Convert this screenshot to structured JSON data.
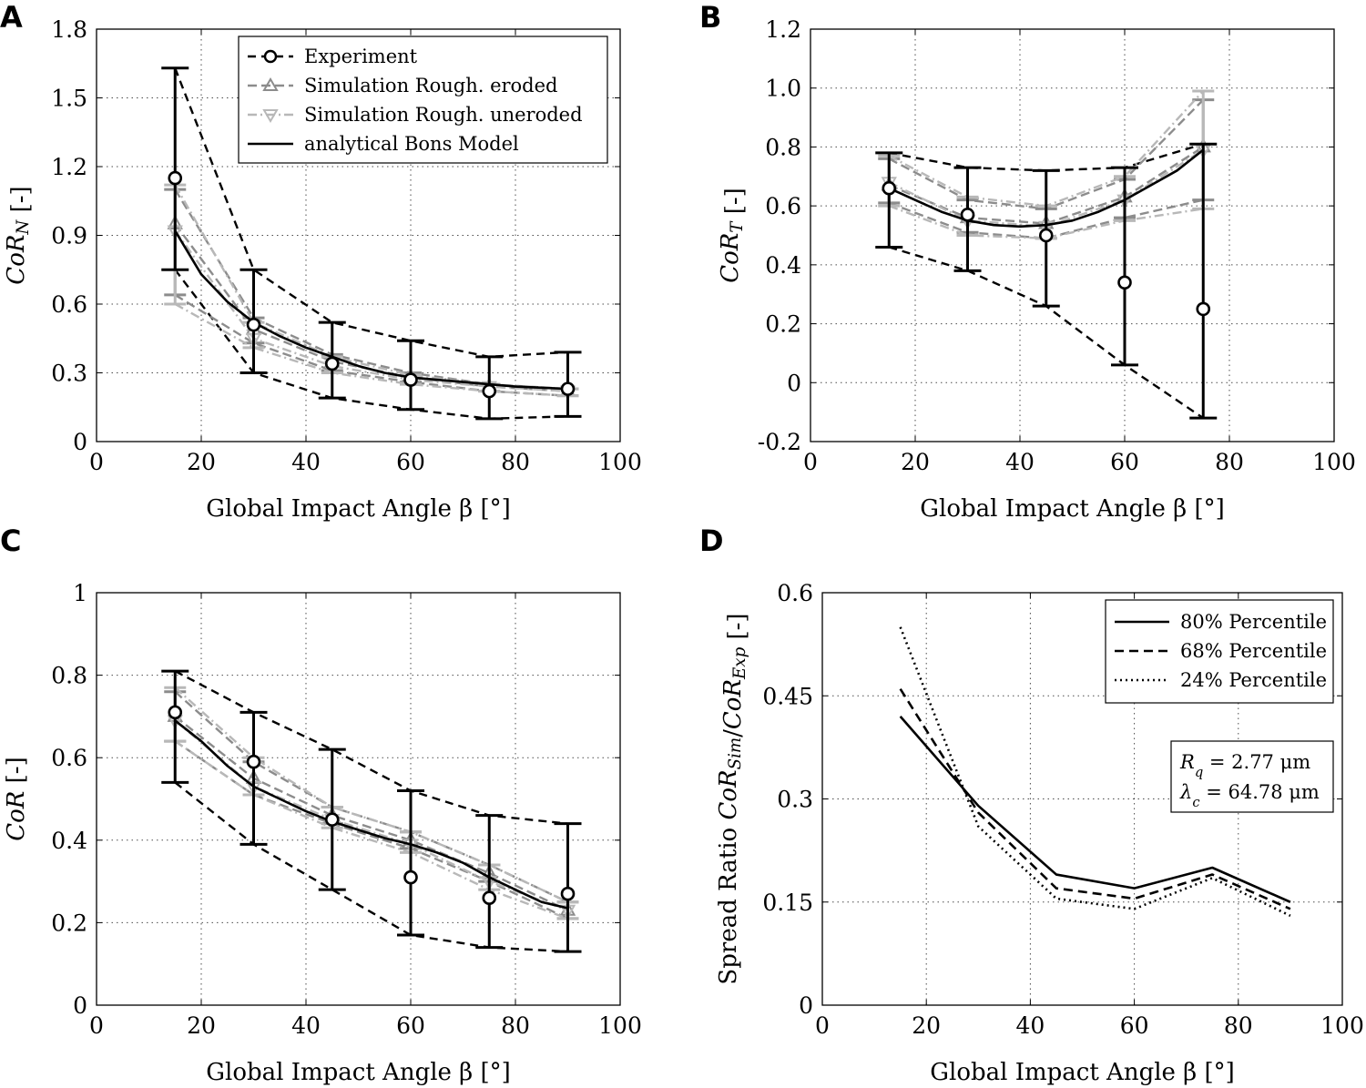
{
  "colors": {
    "experiment": "#000000",
    "sim_eroded": "#8c8c8c",
    "sim_uneroded": "#b8b8b8",
    "bons": "#000000"
  },
  "chart_data": [
    {
      "panel": "A",
      "type": "line",
      "xlabel": "Global Impact Angle β [°]",
      "ylabel": "CoR_N [-]",
      "xlim": [
        0,
        100
      ],
      "ylim": [
        0,
        1.8
      ],
      "xticks": [
        "0",
        "20",
        "40",
        "60",
        "80",
        "100"
      ],
      "xtick_values": [
        0,
        20,
        40,
        60,
        80,
        100
      ],
      "yticks": [
        "0",
        "0.3",
        "0.6",
        "0.9",
        "1.2",
        "1.5",
        "1.8"
      ],
      "ytick_values": [
        0,
        0.3,
        0.6,
        0.9,
        1.2,
        1.5,
        1.8
      ],
      "grid": true,
      "legend_position": "top-right",
      "legend": [
        "Experiment",
        "Simulation Rough. eroded",
        "Simulation Rough. uneroded",
        "analytical Bons Model"
      ],
      "experiment": {
        "x": [
          15,
          30,
          45,
          60,
          75,
          90
        ],
        "mean": [
          1.15,
          0.51,
          0.34,
          0.27,
          0.22,
          0.23
        ],
        "upper": [
          1.63,
          0.75,
          0.52,
          0.44,
          0.37,
          0.39
        ],
        "lower": [
          0.75,
          0.3,
          0.19,
          0.14,
          0.1,
          0.11
        ]
      },
      "sim_eroded": {
        "x": [
          15,
          30,
          45,
          60,
          75,
          90
        ],
        "mean": [
          0.95,
          0.49,
          0.35,
          0.28,
          0.24,
          0.22
        ],
        "upper": [
          1.1,
          0.54,
          0.38,
          0.3,
          0.25,
          0.23
        ],
        "lower": [
          0.64,
          0.43,
          0.31,
          0.26,
          0.22,
          0.2
        ]
      },
      "sim_uneroded": {
        "x": [
          15,
          30,
          45,
          60,
          75,
          90
        ],
        "mean": [
          0.92,
          0.45,
          0.33,
          0.27,
          0.24,
          0.22
        ],
        "upper": [
          1.12,
          0.52,
          0.37,
          0.29,
          0.25,
          0.23
        ],
        "lower": [
          0.6,
          0.41,
          0.3,
          0.25,
          0.22,
          0.2
        ]
      },
      "bons": {
        "x": [
          15,
          20,
          25,
          30,
          35,
          40,
          45,
          50,
          55,
          60,
          65,
          70,
          75,
          80,
          85,
          90
        ],
        "y": [
          0.92,
          0.73,
          0.61,
          0.52,
          0.46,
          0.41,
          0.37,
          0.33,
          0.3,
          0.28,
          0.27,
          0.26,
          0.25,
          0.24,
          0.235,
          0.23
        ]
      }
    },
    {
      "panel": "B",
      "type": "line",
      "xlabel": "Global Impact Angle β [°]",
      "ylabel": "CoR_T [-]",
      "xlim": [
        0,
        100
      ],
      "ylim": [
        -0.2,
        1.2
      ],
      "xticks": [
        "0",
        "20",
        "40",
        "60",
        "80",
        "100"
      ],
      "xtick_values": [
        0,
        20,
        40,
        60,
        80,
        100
      ],
      "yticks": [
        "-0.2",
        "0",
        "0.2",
        "0.4",
        "0.6",
        "0.8",
        "1.0",
        "1.2"
      ],
      "ytick_values": [
        -0.2,
        0,
        0.2,
        0.4,
        0.6,
        0.8,
        1.0,
        1.2
      ],
      "grid": true,
      "experiment": {
        "x": [
          15,
          30,
          45,
          60,
          75
        ],
        "mean": [
          0.66,
          0.57,
          0.5,
          0.34,
          0.25
        ],
        "upper": [
          0.78,
          0.73,
          0.72,
          0.73,
          0.81
        ],
        "lower": [
          0.46,
          0.38,
          0.26,
          0.06,
          -0.12
        ]
      },
      "sim_eroded": {
        "x": [
          15,
          30,
          45,
          60,
          75
        ],
        "mean": [
          0.67,
          0.56,
          0.54,
          0.63,
          0.8
        ],
        "upper": [
          0.76,
          0.62,
          0.59,
          0.69,
          0.96
        ],
        "lower": [
          0.61,
          0.51,
          0.49,
          0.56,
          0.62
        ]
      },
      "sim_uneroded": {
        "x": [
          15,
          30,
          45,
          60,
          75
        ],
        "mean": [
          0.68,
          0.55,
          0.53,
          0.62,
          0.79
        ],
        "upper": [
          0.77,
          0.63,
          0.6,
          0.7,
          0.99
        ],
        "lower": [
          0.6,
          0.5,
          0.49,
          0.55,
          0.59
        ]
      },
      "bons": {
        "x": [
          15,
          20,
          25,
          30,
          35,
          40,
          45,
          50,
          55,
          60,
          65,
          70,
          75
        ],
        "y": [
          0.66,
          0.62,
          0.58,
          0.55,
          0.535,
          0.53,
          0.535,
          0.55,
          0.58,
          0.62,
          0.67,
          0.72,
          0.79
        ]
      }
    },
    {
      "panel": "C",
      "type": "line",
      "xlabel": "Global Impact Angle β [°]",
      "ylabel": "CoR [-]",
      "xlim": [
        0,
        100
      ],
      "ylim": [
        0,
        1
      ],
      "xticks": [
        "0",
        "20",
        "40",
        "60",
        "80",
        "100"
      ],
      "xtick_values": [
        0,
        20,
        40,
        60,
        80,
        100
      ],
      "yticks": [
        "0",
        "0.2",
        "0.4",
        "0.6",
        "0.8",
        "1"
      ],
      "ytick_values": [
        0,
        0.2,
        0.4,
        0.6,
        0.8,
        1
      ],
      "grid": true,
      "experiment": {
        "x": [
          15,
          30,
          45,
          60,
          75,
          90
        ],
        "mean": [
          0.71,
          0.59,
          0.45,
          0.31,
          0.26,
          0.27
        ],
        "upper": [
          0.81,
          0.71,
          0.62,
          0.52,
          0.46,
          0.44
        ],
        "lower": [
          0.54,
          0.39,
          0.28,
          0.17,
          0.14,
          0.13
        ]
      },
      "sim_eroded": {
        "x": [
          15,
          30,
          45,
          60,
          75,
          90
        ],
        "mean": [
          0.7,
          0.55,
          0.46,
          0.4,
          0.32,
          0.23
        ],
        "upper": [
          0.76,
          0.59,
          0.48,
          0.42,
          0.34,
          0.25
        ],
        "lower": [
          0.64,
          0.51,
          0.44,
          0.38,
          0.3,
          0.21
        ]
      },
      "sim_uneroded": {
        "x": [
          15,
          30,
          45,
          60,
          75,
          90
        ],
        "mean": [
          0.69,
          0.53,
          0.45,
          0.39,
          0.3,
          0.23
        ],
        "upper": [
          0.77,
          0.6,
          0.48,
          0.42,
          0.34,
          0.25
        ],
        "lower": [
          0.64,
          0.51,
          0.43,
          0.37,
          0.28,
          0.21
        ]
      },
      "bons": {
        "x": [
          15,
          20,
          25,
          30,
          35,
          40,
          45,
          50,
          55,
          60,
          65,
          70,
          75,
          80,
          85,
          90
        ],
        "y": [
          0.69,
          0.64,
          0.58,
          0.53,
          0.5,
          0.47,
          0.445,
          0.425,
          0.405,
          0.39,
          0.37,
          0.345,
          0.31,
          0.28,
          0.25,
          0.235
        ]
      }
    },
    {
      "panel": "D",
      "type": "line",
      "xlabel": "Global Impact Angle β [°]",
      "ylabel": "Spread Ratio CoR_Sim/CoR_Exp [-]",
      "xlim": [
        0,
        100
      ],
      "ylim": [
        0,
        0.6
      ],
      "xticks": [
        "0",
        "20",
        "40",
        "60",
        "80",
        "100"
      ],
      "xtick_values": [
        0,
        20,
        40,
        60,
        80,
        100
      ],
      "yticks": [
        "0",
        "0.15",
        "0.3",
        "0.45",
        "0.6"
      ],
      "ytick_values": [
        0,
        0.15,
        0.3,
        0.45,
        0.6
      ],
      "grid": true,
      "legend_position": "top-right",
      "x": [
        15,
        30,
        45,
        60,
        75,
        90
      ],
      "series": [
        {
          "name": "80% Percentile",
          "style": "solid",
          "values": [
            0.42,
            0.29,
            0.19,
            0.17,
            0.2,
            0.15
          ]
        },
        {
          "name": "68% Percentile",
          "style": "dashed",
          "values": [
            0.46,
            0.28,
            0.17,
            0.155,
            0.19,
            0.14
          ]
        },
        {
          "name": "24% Percentile",
          "style": "dotted",
          "values": [
            0.55,
            0.26,
            0.155,
            0.14,
            0.185,
            0.13
          ]
        }
      ],
      "annotation": [
        "R_q = 2.77 μm",
        "λ_c = 64.78 μm"
      ]
    }
  ]
}
